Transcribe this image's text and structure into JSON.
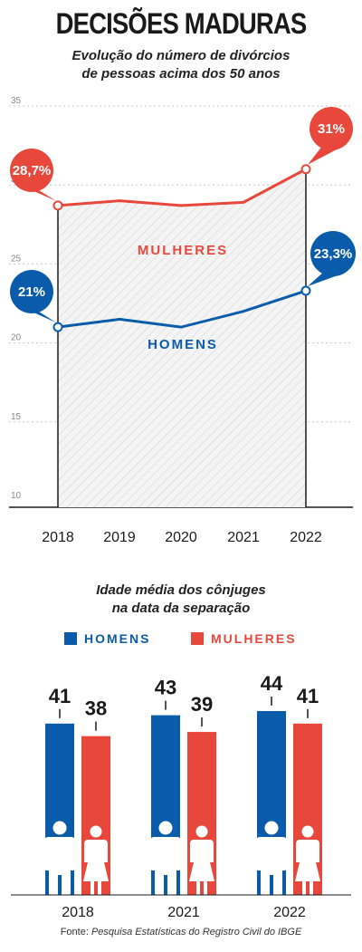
{
  "title": "DECISÕES MADURAS",
  "subtitle_lines": [
    "Evolução do número de divórcios",
    "de pessoas acima dos 50 anos"
  ],
  "colors": {
    "homens": "#0a5cab",
    "mulheres": "#e8483c",
    "grid": "#c8c8c8",
    "axis": "#1a1a1a"
  },
  "chart_data": [
    {
      "type": "line",
      "x": [
        "2018",
        "2019",
        "2020",
        "2021",
        "2022"
      ],
      "ylim": [
        10,
        35
      ],
      "yticks": [
        "10",
        "15",
        "20",
        "25",
        "30",
        "35"
      ],
      "series": [
        {
          "name": "MULHERES",
          "values": [
            28.7,
            29.0,
            28.7,
            28.9,
            31.0
          ]
        },
        {
          "name": "HOMENS",
          "values": [
            21.0,
            21.5,
            21.0,
            22.0,
            23.3
          ]
        }
      ],
      "annotations": {
        "mulheres_start": "28,7%",
        "mulheres_end": "31%",
        "homens_start": "21%",
        "homens_end": "23,3%"
      },
      "grid": true
    },
    {
      "type": "bar",
      "title_lines": [
        "Idade média dos cônjuges",
        "na data da separação"
      ],
      "categories": [
        "2018",
        "2021",
        "2022"
      ],
      "series": [
        {
          "name": "HOMENS",
          "values": [
            41,
            43,
            44
          ]
        },
        {
          "name": "MULHERES",
          "values": [
            38,
            39,
            41
          ]
        }
      ],
      "ylim": [
        0,
        44
      ]
    }
  ],
  "source_prefix": "Fonte: ",
  "source_text": "Pesquisa Estatísticas do Registro Civil do IBGE"
}
